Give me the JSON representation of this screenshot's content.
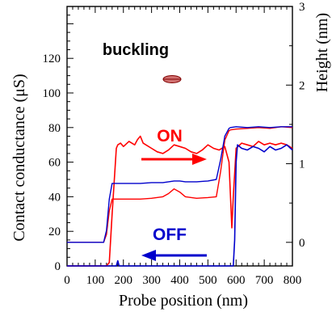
{
  "chart_data": {
    "type": "line",
    "xlabel": "Probe position (nm)",
    "ylabel": "Contact conductance (μS)",
    "ylabel_right": "Height (nm)",
    "xlim": [
      0,
      800
    ],
    "ylim": [
      0,
      150
    ],
    "ylim_right": [
      -0.3,
      3
    ],
    "x_ticks": [
      0,
      100,
      200,
      300,
      400,
      500,
      600,
      700,
      800
    ],
    "y_ticks": [
      0,
      20,
      40,
      60,
      80,
      100,
      120
    ],
    "y_ticks_right": [
      0,
      1,
      2,
      3
    ],
    "annotations": {
      "buckling": "buckling",
      "on": "ON",
      "off": "OFF"
    },
    "colors": {
      "on": "#ff0000",
      "off": "#0000cc",
      "axis": "#000000"
    },
    "series": [
      {
        "values_note": "",
        "x": [
          0,
          100,
          140,
          150,
          160,
          175,
          180,
          190,
          200,
          220,
          240,
          250,
          260,
          270,
          280,
          300,
          320,
          340,
          360,
          380,
          400,
          420,
          440,
          460,
          480,
          500,
          520,
          540,
          560,
          575,
          585,
          590,
          600,
          620,
          640,
          660,
          680,
          700,
          720,
          740,
          760,
          780,
          800
        ],
        "y": [
          0,
          0,
          0,
          2,
          30,
          68,
          70,
          71,
          69,
          72,
          70,
          73,
          75,
          71,
          70,
          68,
          66,
          65,
          67,
          70,
          69,
          68,
          66,
          65,
          67,
          70,
          68,
          67,
          69,
          60,
          22,
          40,
          68,
          71,
          70,
          69,
          72,
          70,
          71,
          70,
          71,
          70,
          68
        ]
      },
      {
        "x": [
          0,
          100,
          175,
          180,
          185,
          190,
          200,
          300,
          400,
          500,
          580,
          590,
          595,
          600,
          605,
          620,
          640,
          660,
          680,
          700,
          720,
          740,
          760,
          780,
          800
        ],
        "y": [
          0,
          0,
          0,
          3,
          0,
          0,
          0,
          0,
          0,
          0,
          0,
          0,
          15,
          60,
          70,
          68,
          67,
          69,
          68,
          66,
          69,
          67,
          68,
          70,
          67
        ]
      },
      {
        "x": [
          0,
          50,
          100,
          130,
          140,
          150,
          160,
          180,
          220,
          260,
          300,
          340,
          360,
          380,
          400,
          420,
          460,
          500,
          530,
          545,
          560,
          575,
          580,
          600,
          640,
          680,
          720,
          760,
          800
        ],
        "y": [
          0.0,
          0.0,
          0.0,
          0.0,
          0.1,
          0.4,
          0.55,
          0.55,
          0.55,
          0.55,
          0.56,
          0.58,
          0.62,
          0.68,
          0.64,
          0.58,
          0.56,
          0.57,
          0.58,
          0.9,
          1.3,
          1.42,
          1.43,
          1.44,
          1.45,
          1.46,
          1.45,
          1.47,
          1.46
        ]
      },
      {
        "x": [
          0,
          50,
          100,
          130,
          140,
          150,
          160,
          180,
          220,
          260,
          300,
          340,
          360,
          380,
          400,
          420,
          460,
          500,
          530,
          545,
          560,
          575,
          580,
          600,
          640,
          680,
          720,
          760,
          800
        ],
        "y": [
          0.0,
          0.0,
          0.0,
          0.0,
          0.15,
          0.55,
          0.75,
          0.75,
          0.75,
          0.75,
          0.76,
          0.76,
          0.77,
          0.78,
          0.78,
          0.77,
          0.77,
          0.78,
          0.8,
          1.05,
          1.35,
          1.45,
          1.46,
          1.47,
          1.46,
          1.47,
          1.46,
          1.47,
          1.47
        ]
      }
    ]
  }
}
